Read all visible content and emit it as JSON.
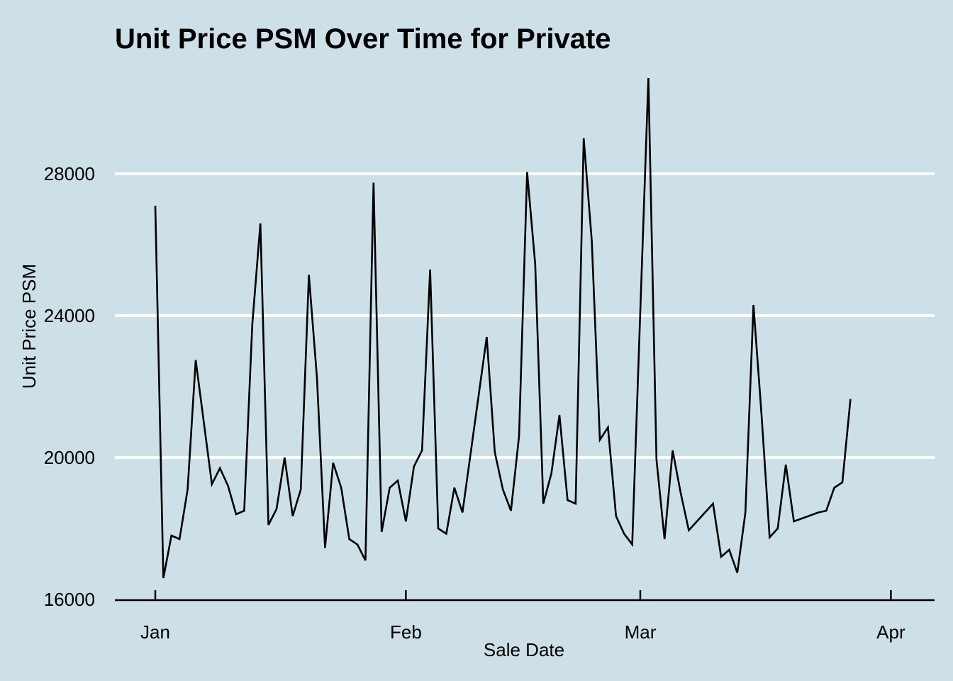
{
  "chart_data": {
    "type": "line",
    "title": "Unit Price PSM Over Time for Private",
    "xlabel": "Sale Date",
    "ylabel": "Unit Price PSM",
    "y_ticks": [
      16000,
      20000,
      24000,
      28000
    ],
    "ylim": [
      16000,
      31300
    ],
    "x_ticks": [
      {
        "date": "2024-01-01",
        "label": "Jan"
      },
      {
        "date": "2024-02-01",
        "label": "Feb"
      },
      {
        "date": "2024-03-01",
        "label": "Mar"
      },
      {
        "date": "2024-04-01",
        "label": "Apr"
      }
    ],
    "xlim": [
      "2023-12-27",
      "2024-04-01"
    ],
    "grid": "horizontal major",
    "colors": {
      "background": "#cde0e7",
      "grid": "#ffffff",
      "line": "#000000"
    },
    "series": [
      {
        "x": [
          "2024-01-01",
          "2024-01-02",
          "2024-01-03",
          "2024-01-04",
          "2024-01-05",
          "2024-01-06",
          "2024-01-08",
          "2024-01-09",
          "2024-01-10",
          "2024-01-11",
          "2024-01-12",
          "2024-01-13",
          "2024-01-14",
          "2024-01-15",
          "2024-01-16",
          "2024-01-17",
          "2024-01-18",
          "2024-01-19",
          "2024-01-20",
          "2024-01-21",
          "2024-01-22",
          "2024-01-23",
          "2024-01-24",
          "2024-01-25",
          "2024-01-26",
          "2024-01-27",
          "2024-01-28",
          "2024-01-29",
          "2024-01-30",
          "2024-01-31",
          "2024-02-01",
          "2024-02-02",
          "2024-02-03",
          "2024-02-04",
          "2024-02-05",
          "2024-02-06",
          "2024-02-07",
          "2024-02-08",
          "2024-02-11",
          "2024-02-12",
          "2024-02-13",
          "2024-02-14",
          "2024-02-15",
          "2024-02-16",
          "2024-02-17",
          "2024-02-18",
          "2024-02-19",
          "2024-02-20",
          "2024-02-21",
          "2024-02-22",
          "2024-02-23",
          "2024-02-24",
          "2024-02-25",
          "2024-02-26",
          "2024-02-27",
          "2024-02-28",
          "2024-02-29",
          "2024-03-02",
          "2024-03-03",
          "2024-03-04",
          "2024-03-05",
          "2024-03-06",
          "2024-03-07",
          "2024-03-10",
          "2024-03-11",
          "2024-03-12",
          "2024-03-13",
          "2024-03-14",
          "2024-03-15",
          "2024-03-16",
          "2024-03-17",
          "2024-03-18",
          "2024-03-19",
          "2024-03-20",
          "2024-03-23",
          "2024-03-24",
          "2024-03-25",
          "2024-03-26",
          "2024-03-27"
        ],
        "y": [
          27100,
          16600,
          17800,
          17700,
          19100,
          22750,
          19250,
          19700,
          19200,
          18400,
          18500,
          23750,
          26600,
          18100,
          18550,
          20000,
          18350,
          19100,
          25150,
          22250,
          17450,
          19850,
          19150,
          17700,
          17550,
          17100,
          27750,
          17900,
          19150,
          19350,
          18200,
          19750,
          20200,
          25300,
          18000,
          17850,
          19150,
          18450,
          23400,
          20150,
          19100,
          18500,
          20600,
          28050,
          25450,
          18700,
          19550,
          21200,
          18800,
          18700,
          29000,
          26100,
          20500,
          20850,
          18350,
          17850,
          17550,
          30700,
          19950,
          17700,
          20200,
          19000,
          17950,
          18700,
          17200,
          17400,
          16750,
          18450,
          24300,
          21200,
          17750,
          18000,
          19800,
          18200,
          18450,
          18500,
          19150,
          19300,
          21650
        ]
      }
    ]
  }
}
